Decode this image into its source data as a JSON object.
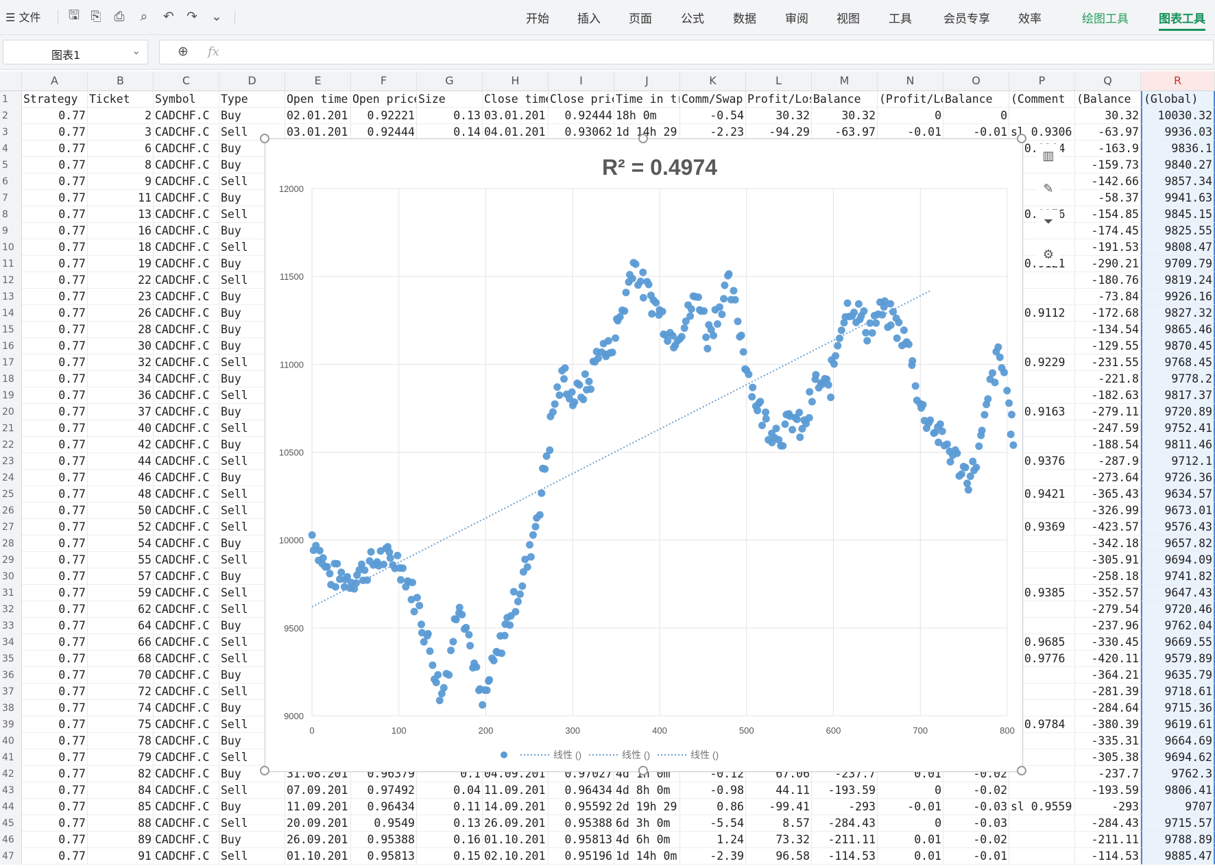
{
  "ribbon": {
    "file_menu": "文件",
    "tabs": [
      "开始",
      "插入",
      "页面",
      "公式",
      "数据",
      "审阅",
      "视图",
      "工具",
      "会员专享",
      "效率"
    ],
    "context_tabs": [
      "绘图工具",
      "图表工具"
    ],
    "active_tab": "图表工具"
  },
  "formula_bar": {
    "name_box": "图表1",
    "fx_label": "fx",
    "formula": ""
  },
  "columns": [
    "A",
    "B",
    "C",
    "D",
    "E",
    "F",
    "G",
    "H",
    "I",
    "J",
    "K",
    "L",
    "M",
    "N",
    "O",
    "P",
    "Q",
    "R"
  ],
  "selected_column": "R",
  "rows": [
    [
      "1",
      "Strategy",
      "Ticket",
      "Symbol",
      "Type",
      "Open time",
      "Open price",
      "Size",
      "Close time",
      "Close price",
      "Time in trade",
      "Comm/Swap",
      "Profit/Loss",
      "Balance",
      "(Profit/Loss)",
      "Balance",
      "(Comment",
      "(Balance",
      "(Global)"
    ],
    [
      "2",
      "0.77",
      "2",
      "CADCHF.C",
      "Buy",
      "02.01.201",
      "0.92221",
      "0.13",
      "03.01.201",
      "0.92444",
      "18h 0m",
      "-0.54",
      "30.32",
      "30.32",
      "0",
      "0",
      "",
      "30.32",
      "10030.32"
    ],
    [
      "3",
      "0.77",
      "3",
      "CADCHF.C",
      "Sell",
      "03.01.201",
      "0.92444",
      "0.14",
      "04.01.201",
      "0.93062",
      "1d 14h 29",
      "-2.23",
      "-94.29",
      "-63.97",
      "-0.01",
      "-0.01",
      "sl 0.9306",
      "-63.97",
      "9936.03"
    ],
    [
      "4",
      "0.77",
      "6",
      "CADCHF.C",
      "Buy",
      "",
      "",
      "",
      "",
      "",
      "",
      "",
      "",
      "",
      "",
      "",
      "l 0.9314",
      "-163.9",
      "9836.1"
    ],
    [
      "5",
      "0.77",
      "8",
      "CADCHF.C",
      "Buy",
      "",
      "",
      "",
      "",
      "",
      "",
      "",
      "",
      "",
      "",
      "",
      "",
      "-159.73",
      "9840.27"
    ],
    [
      "6",
      "0.77",
      "9",
      "CADCHF.C",
      "Sell",
      "",
      "",
      "",
      "",
      "",
      "",
      "",
      "",
      "",
      "",
      "",
      "",
      "-142.66",
      "9857.34"
    ],
    [
      "7",
      "0.77",
      "11",
      "CADCHF.C",
      "Buy",
      "",
      "",
      "",
      "",
      "",
      "",
      "",
      "",
      "",
      "",
      "",
      "",
      "-58.37",
      "9941.63"
    ],
    [
      "8",
      "0.77",
      "13",
      "CADCHF.C",
      "Sell",
      "",
      "",
      "",
      "",
      "",
      "",
      "",
      "",
      "",
      "",
      "",
      "l 0.9276",
      "-154.85",
      "9845.15"
    ],
    [
      "9",
      "0.77",
      "16",
      "CADCHF.C",
      "Buy",
      "",
      "",
      "",
      "",
      "",
      "",
      "",
      "",
      "",
      "",
      "",
      "",
      "-174.45",
      "9825.55"
    ],
    [
      "10",
      "0.77",
      "18",
      "CADCHF.C",
      "Sell",
      "",
      "",
      "",
      "",
      "",
      "",
      "",
      "",
      "",
      "",
      "",
      "",
      "-191.53",
      "9808.47"
    ],
    [
      "11",
      "0.77",
      "19",
      "CADCHF.C",
      "Buy",
      "",
      "",
      "",
      "",
      "",
      "",
      "",
      "",
      "",
      "",
      "",
      "l 0.9121",
      "-290.21",
      "9709.79"
    ],
    [
      "12",
      "0.77",
      "22",
      "CADCHF.C",
      "Sell",
      "",
      "",
      "",
      "",
      "",
      "",
      "",
      "",
      "",
      "",
      "",
      "",
      "-180.76",
      "9819.24"
    ],
    [
      "13",
      "0.77",
      "23",
      "CADCHF.C",
      "Buy",
      "",
      "",
      "",
      "",
      "",
      "",
      "",
      "",
      "",
      "",
      "",
      "",
      "-73.84",
      "9926.16"
    ],
    [
      "14",
      "0.77",
      "26",
      "CADCHF.C",
      "Buy",
      "",
      "",
      "",
      "",
      "",
      "",
      "",
      "",
      "",
      "",
      "",
      "l 0.9112",
      "-172.68",
      "9827.32"
    ],
    [
      "15",
      "0.77",
      "28",
      "CADCHF.C",
      "Buy",
      "",
      "",
      "",
      "",
      "",
      "",
      "",
      "",
      "",
      "",
      "",
      "",
      "-134.54",
      "9865.46"
    ],
    [
      "16",
      "0.77",
      "30",
      "CADCHF.C",
      "Buy",
      "",
      "",
      "",
      "",
      "",
      "",
      "",
      "",
      "",
      "",
      "",
      "",
      "-129.55",
      "9870.45"
    ],
    [
      "17",
      "0.77",
      "32",
      "CADCHF.C",
      "Sell",
      "",
      "",
      "",
      "",
      "",
      "",
      "",
      "",
      "",
      "",
      "",
      "l 0.9229",
      "-231.55",
      "9768.45"
    ],
    [
      "18",
      "0.77",
      "34",
      "CADCHF.C",
      "Buy",
      "",
      "",
      "",
      "",
      "",
      "",
      "",
      "",
      "",
      "",
      "",
      "",
      "-221.8",
      "9778.2"
    ],
    [
      "19",
      "0.77",
      "36",
      "CADCHF.C",
      "Sell",
      "",
      "",
      "",
      "",
      "",
      "",
      "",
      "",
      "",
      "",
      "",
      "",
      "-182.63",
      "9817.37"
    ],
    [
      "20",
      "0.77",
      "37",
      "CADCHF.C",
      "Buy",
      "",
      "",
      "",
      "",
      "",
      "",
      "",
      "",
      "",
      "",
      "",
      "l 0.9163",
      "-279.11",
      "9720.89"
    ],
    [
      "21",
      "0.77",
      "40",
      "CADCHF.C",
      "Sell",
      "",
      "",
      "",
      "",
      "",
      "",
      "",
      "",
      "",
      "",
      "",
      "",
      "-247.59",
      "9752.41"
    ],
    [
      "22",
      "0.77",
      "42",
      "CADCHF.C",
      "Buy",
      "",
      "",
      "",
      "",
      "",
      "",
      "",
      "",
      "",
      "",
      "",
      "",
      "-188.54",
      "9811.46"
    ],
    [
      "23",
      "0.77",
      "44",
      "CADCHF.C",
      "Sell",
      "",
      "",
      "",
      "",
      "",
      "",
      "",
      "",
      "",
      "",
      "",
      "l 0.9376",
      "-287.9",
      "9712.1"
    ],
    [
      "24",
      "0.77",
      "46",
      "CADCHF.C",
      "Buy",
      "",
      "",
      "",
      "",
      "",
      "",
      "",
      "",
      "",
      "",
      "",
      "",
      "-273.64",
      "9726.36"
    ],
    [
      "25",
      "0.77",
      "48",
      "CADCHF.C",
      "Sell",
      "",
      "",
      "",
      "",
      "",
      "",
      "",
      "",
      "",
      "",
      "",
      "l 0.9421",
      "-365.43",
      "9634.57"
    ],
    [
      "26",
      "0.77",
      "50",
      "CADCHF.C",
      "Sell",
      "",
      "",
      "",
      "",
      "",
      "",
      "",
      "",
      "",
      "",
      "",
      "",
      "-326.99",
      "9673.01"
    ],
    [
      "27",
      "0.77",
      "52",
      "CADCHF.C",
      "Sell",
      "",
      "",
      "",
      "",
      "",
      "",
      "",
      "",
      "",
      "",
      "",
      "l 0.9369",
      "-423.57",
      "9576.43"
    ],
    [
      "28",
      "0.77",
      "54",
      "CADCHF.C",
      "Buy",
      "",
      "",
      "",
      "",
      "",
      "",
      "",
      "",
      "",
      "",
      "",
      "",
      "-342.18",
      "9657.82"
    ],
    [
      "29",
      "0.77",
      "55",
      "CADCHF.C",
      "Sell",
      "",
      "",
      "",
      "",
      "",
      "",
      "",
      "",
      "",
      "",
      "",
      "",
      "-305.91",
      "9694.09"
    ],
    [
      "30",
      "0.77",
      "57",
      "CADCHF.C",
      "Buy",
      "",
      "",
      "",
      "",
      "",
      "",
      "",
      "",
      "",
      "",
      "",
      "",
      "-258.18",
      "9741.82"
    ],
    [
      "31",
      "0.77",
      "59",
      "CADCHF.C",
      "Sell",
      "",
      "",
      "",
      "",
      "",
      "",
      "",
      "",
      "",
      "",
      "",
      "l 0.9385",
      "-352.57",
      "9647.43"
    ],
    [
      "32",
      "0.77",
      "62",
      "CADCHF.C",
      "Sell",
      "",
      "",
      "",
      "",
      "",
      "",
      "",
      "",
      "",
      "",
      "",
      "",
      "-279.54",
      "9720.46"
    ],
    [
      "33",
      "0.77",
      "64",
      "CADCHF.C",
      "Buy",
      "",
      "",
      "",
      "",
      "",
      "",
      "",
      "",
      "",
      "",
      "",
      "",
      "-237.96",
      "9762.04"
    ],
    [
      "34",
      "0.77",
      "66",
      "CADCHF.C",
      "Sell",
      "",
      "",
      "",
      "",
      "",
      "",
      "",
      "",
      "",
      "",
      "",
      "l 0.9685",
      "-330.45",
      "9669.55"
    ],
    [
      "35",
      "0.77",
      "68",
      "CADCHF.C",
      "Sell",
      "",
      "",
      "",
      "",
      "",
      "",
      "",
      "",
      "",
      "",
      "",
      "l 0.9776",
      "-420.11",
      "9579.89"
    ],
    [
      "36",
      "0.77",
      "70",
      "CADCHF.C",
      "Buy",
      "",
      "",
      "",
      "",
      "",
      "",
      "",
      "",
      "",
      "",
      "",
      "",
      "-364.21",
      "9635.79"
    ],
    [
      "37",
      "0.77",
      "72",
      "CADCHF.C",
      "Sell",
      "",
      "",
      "",
      "",
      "",
      "",
      "",
      "",
      "",
      "",
      "",
      "",
      "-281.39",
      "9718.61"
    ],
    [
      "38",
      "0.77",
      "74",
      "CADCHF.C",
      "Buy",
      "",
      "",
      "",
      "",
      "",
      "",
      "",
      "",
      "",
      "",
      "",
      "",
      "-284.64",
      "9715.36"
    ],
    [
      "39",
      "0.77",
      "75",
      "CADCHF.C",
      "Sell",
      "",
      "",
      "",
      "",
      "",
      "",
      "",
      "",
      "",
      "",
      "",
      "l 0.9784",
      "-380.39",
      "9619.61"
    ],
    [
      "40",
      "0.77",
      "78",
      "CADCHF.C",
      "Buy",
      "",
      "",
      "",
      "",
      "",
      "",
      "",
      "",
      "",
      "",
      "",
      "",
      "-335.31",
      "9664.69"
    ],
    [
      "41",
      "0.77",
      "79",
      "CADCHF.C",
      "Sell",
      "",
      "",
      "",
      "",
      "",
      "",
      "",
      "",
      "",
      "",
      "",
      "",
      "-305.38",
      "9694.62"
    ],
    [
      "42",
      "0.77",
      "82",
      "CADCHF.C",
      "Buy",
      "31.08.201",
      "0.96379",
      "0.1",
      "04.09.201",
      "0.97027",
      "4d 1h 0m",
      "-0.12",
      "67.06",
      "-237.7",
      "0.01",
      "-0.02",
      "",
      "-237.7",
      "9762.3"
    ],
    [
      "43",
      "0.77",
      "84",
      "CADCHF.C",
      "Sell",
      "07.09.201",
      "0.97492",
      "0.04",
      "11.09.201",
      "0.96434",
      "4d 8h 0m",
      "-0.98",
      "44.11",
      "-193.59",
      "0",
      "-0.02",
      "",
      "-193.59",
      "9806.41"
    ],
    [
      "44",
      "0.77",
      "85",
      "CADCHF.C",
      "Buy",
      "11.09.201",
      "0.96434",
      "0.11",
      "14.09.201",
      "0.95592",
      "2d 19h 29",
      "0.86",
      "-99.41",
      "-293",
      "-0.01",
      "-0.03",
      "sl 0.9559",
      "-293",
      "9707"
    ],
    [
      "45",
      "0.77",
      "88",
      "CADCHF.C",
      "Sell",
      "20.09.201",
      "0.9549",
      "0.13",
      "26.09.201",
      "0.95388",
      "6d 3h 0m",
      "-5.54",
      "8.57",
      "-284.43",
      "0",
      "-0.03",
      "",
      "-284.43",
      "9715.57"
    ],
    [
      "46",
      "0.77",
      "89",
      "CADCHF.C",
      "Buy",
      "26.09.201",
      "0.95388",
      "0.16",
      "01.10.201",
      "0.95813",
      "4d 6h 0m",
      "1.24",
      "73.32",
      "-211.11",
      "0.01",
      "-0.02",
      "",
      "-211.11",
      "9788.89"
    ],
    [
      "47",
      "0.77",
      "91",
      "CADCHF.C",
      "Sell",
      "01.10.201",
      "0.95813",
      "0.15",
      "02.10.201",
      "0.95196",
      "1d 14h 0m",
      "-2.39",
      "96.58",
      "-114.53",
      "0.01",
      "-0.01",
      "",
      "-114.53",
      "9885.47"
    ]
  ],
  "chart_data": {
    "type": "scatter",
    "title": "R² = 0.4974",
    "xlim": [
      0,
      800
    ],
    "ylim": [
      9000,
      12000
    ],
    "x_ticks": [
      "0",
      "100",
      "200",
      "300",
      "400",
      "500",
      "600",
      "700",
      "800"
    ],
    "y_ticks": [
      "9000",
      "9500",
      "10000",
      "10500",
      "11000",
      "11500",
      "12000"
    ],
    "legend_position": "bottom",
    "legend": [
      "",
      "线性 ()",
      "线性 ()",
      "线性 ()"
    ],
    "point_color": "#5b9bd5",
    "trendline": {
      "x": [
        0,
        712
      ],
      "y": [
        9620,
        11420
      ],
      "style": "dotted"
    },
    "anchor_points": [
      [
        0,
        10030
      ],
      [
        20,
        9800
      ],
      [
        45,
        9780
      ],
      [
        80,
        9900
      ],
      [
        100,
        9880
      ],
      [
        120,
        9650
      ],
      [
        135,
        9400
      ],
      [
        150,
        9100
      ],
      [
        170,
        9700
      ],
      [
        180,
        9450
      ],
      [
        195,
        9050
      ],
      [
        210,
        9300
      ],
      [
        230,
        9600
      ],
      [
        250,
        9900
      ],
      [
        265,
        10300
      ],
      [
        280,
        10800
      ],
      [
        290,
        10950
      ],
      [
        300,
        10800
      ],
      [
        320,
        10900
      ],
      [
        330,
        11100
      ],
      [
        340,
        11050
      ],
      [
        360,
        11350
      ],
      [
        370,
        11600
      ],
      [
        380,
        11450
      ],
      [
        400,
        11300
      ],
      [
        415,
        11150
      ],
      [
        430,
        11250
      ],
      [
        445,
        11400
      ],
      [
        455,
        11150
      ],
      [
        470,
        11350
      ],
      [
        480,
        11450
      ],
      [
        490,
        11250
      ],
      [
        500,
        11000
      ],
      [
        510,
        10800
      ],
      [
        525,
        10650
      ],
      [
        540,
        10600
      ],
      [
        555,
        10700
      ],
      [
        565,
        10600
      ],
      [
        580,
        10900
      ],
      [
        595,
        10850
      ],
      [
        610,
        11250
      ],
      [
        620,
        11350
      ],
      [
        640,
        11200
      ],
      [
        655,
        11300
      ],
      [
        670,
        11250
      ],
      [
        690,
        11050
      ],
      [
        700,
        10750
      ],
      [
        715,
        10650
      ],
      [
        735,
        10500
      ],
      [
        748,
        10400
      ],
      [
        758,
        10350
      ],
      [
        772,
        10600
      ],
      [
        782,
        10900
      ],
      [
        790,
        11050
      ],
      [
        797,
        10950
      ],
      [
        802,
        10700
      ],
      [
        808,
        10600
      ]
    ],
    "point_count": 356
  }
}
